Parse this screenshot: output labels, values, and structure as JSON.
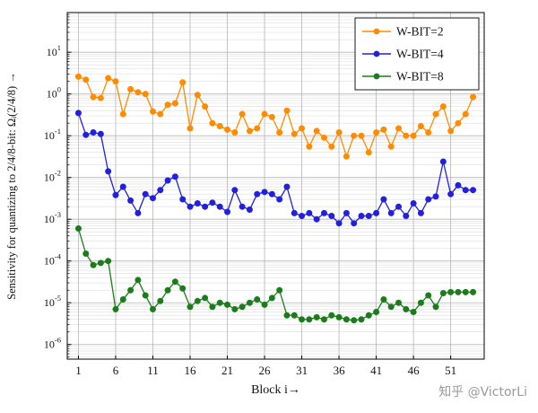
{
  "watermark": "知乎 @VictorLi",
  "chart_data": {
    "type": "line",
    "title": "",
    "xlabel": "Block i→",
    "ylabel": "Sensitivity for quantizing to 2/4/8-bit: Ωᵢ(2/4/8) →",
    "x_ticks": [
      1,
      6,
      11,
      16,
      21,
      26,
      31,
      36,
      41,
      46,
      51
    ],
    "y_tick_exponents": [
      1,
      0,
      -1,
      -2,
      -3,
      -4,
      -5,
      -6
    ],
    "x_range": [
      -0.5,
      55.5
    ],
    "y_log_range": [
      -6.35,
      1.95
    ],
    "grid": true,
    "legend_position": "top-right",
    "x_start": 1,
    "colors": {
      "wbit2": "#FF8C00",
      "wbit4": "#2121DD",
      "wbit8": "#1B7C1B"
    },
    "series": [
      {
        "name": "W-BIT=2",
        "color_key": "wbit2",
        "values": [
          2.6,
          2.2,
          0.85,
          0.8,
          2.4,
          2.0,
          0.33,
          1.3,
          1.1,
          1.0,
          0.38,
          0.33,
          0.55,
          0.6,
          1.9,
          0.15,
          0.95,
          0.5,
          0.2,
          0.17,
          0.14,
          0.12,
          0.33,
          0.13,
          0.15,
          0.33,
          0.28,
          0.12,
          0.4,
          0.11,
          0.15,
          0.055,
          0.13,
          0.09,
          0.055,
          0.12,
          0.032,
          0.1,
          0.1,
          0.04,
          0.12,
          0.14,
          0.055,
          0.15,
          0.1,
          0.1,
          0.17,
          0.12,
          0.33,
          0.5,
          0.13,
          0.2,
          0.33,
          0.85
        ]
      },
      {
        "name": "W-BIT=4",
        "color_key": "wbit4",
        "values": [
          0.35,
          0.105,
          0.12,
          0.11,
          0.014,
          0.0038,
          0.006,
          0.0028,
          0.0014,
          0.004,
          0.0032,
          0.005,
          0.0085,
          0.0105,
          0.003,
          0.002,
          0.0024,
          0.002,
          0.0025,
          0.002,
          0.0015,
          0.005,
          0.002,
          0.0017,
          0.004,
          0.0045,
          0.004,
          0.003,
          0.006,
          0.0014,
          0.0012,
          0.0014,
          0.001,
          0.0014,
          0.0012,
          0.0008,
          0.0014,
          0.0008,
          0.0012,
          0.0012,
          0.0014,
          0.003,
          0.0014,
          0.002,
          0.0012,
          0.0024,
          0.0014,
          0.003,
          0.0035,
          0.024,
          0.004,
          0.0065,
          0.005,
          0.005
        ]
      },
      {
        "name": "W-BIT=8",
        "color_key": "wbit8",
        "values": [
          0.0006,
          0.00015,
          8e-05,
          9e-05,
          0.0001,
          7e-06,
          1.2e-05,
          2e-05,
          3.5e-05,
          1.5e-05,
          7e-06,
          1.1e-05,
          2e-05,
          3.2e-05,
          2.2e-05,
          8e-06,
          1.1e-05,
          1.3e-05,
          8e-06,
          1e-05,
          9e-06,
          7e-06,
          8e-06,
          1e-05,
          1.2e-05,
          9e-06,
          1.3e-05,
          2e-05,
          5e-06,
          5e-06,
          4e-06,
          4e-06,
          4.5e-06,
          4e-06,
          5e-06,
          4.5e-06,
          4e-06,
          3.8e-06,
          4e-06,
          5e-06,
          6e-06,
          1.2e-05,
          8e-06,
          1e-05,
          7e-06,
          6e-06,
          1e-05,
          1.5e-05,
          8e-06,
          1.7e-05,
          1.8e-05,
          1.8e-05,
          1.8e-05,
          1.8e-05
        ]
      }
    ]
  }
}
